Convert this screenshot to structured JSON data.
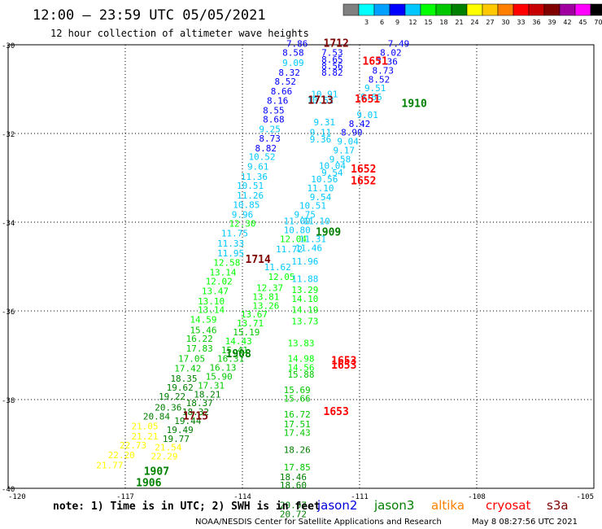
{
  "header": {
    "title": "12:00 — 23:59 UTC 05/05/2021",
    "subtitle": "12 hour collection of altimeter wave heights"
  },
  "color_scale": {
    "unit": "(ft)",
    "bins": [
      {
        "label": "",
        "color": "#808080"
      },
      {
        "label": "3",
        "color": "#00ffff"
      },
      {
        "label": "6",
        "color": "#00a0ff"
      },
      {
        "label": "9",
        "color": "#0000ff"
      },
      {
        "label": "12",
        "color": "#00c8ff"
      },
      {
        "label": "15",
        "color": "#00ff00"
      },
      {
        "label": "18",
        "color": "#00c800"
      },
      {
        "label": "21",
        "color": "#008000"
      },
      {
        "label": "24",
        "color": "#ffff00"
      },
      {
        "label": "27",
        "color": "#ffc800"
      },
      {
        "label": "30",
        "color": "#ff8000"
      },
      {
        "label": "33",
        "color": "#ff0000"
      },
      {
        "label": "36",
        "color": "#c80000"
      },
      {
        "label": "39",
        "color": "#800000"
      },
      {
        "label": "42",
        "color": "#a000a0"
      },
      {
        "label": "45",
        "color": "#ff00ff"
      },
      {
        "label": "70",
        "color": "#000000"
      }
    ]
  },
  "footer": {
    "note": "note: 1) Time is in UTC; 2) SWH is in feet",
    "credit": "NOAA/NESDIS Center for Satellite Applications and Research",
    "timestamp": "May  8 08:27:56 UTC 2021"
  },
  "legend": [
    {
      "name": "jason2",
      "color": "#0000dd"
    },
    {
      "name": "jason3",
      "color": "#008000"
    },
    {
      "name": "altika",
      "color": "#ff8000"
    },
    {
      "name": "cryosat",
      "color": "#ff0000"
    },
    {
      "name": "s3a",
      "color": "#800000"
    }
  ],
  "chart_data": {
    "type": "scatter",
    "title": "12:00 — 23:59 UTC 05/05/2021",
    "subtitle": "12 hour collection of altimeter wave heights",
    "x_ticks": [
      -120,
      -117,
      -114,
      -111,
      -108,
      -105
    ],
    "y_ticks": [
      -30,
      -32,
      -34,
      -36,
      -38,
      -40
    ],
    "xlim": [
      -120,
      -105
    ],
    "ylim": [
      -40,
      -30
    ],
    "grid": true,
    "legend_position": "bottom",
    "series": [
      {
        "name": "jason2",
        "color": "#0000dd"
      },
      {
        "name": "jason3",
        "color": "#008000"
      },
      {
        "name": "altika",
        "color": "#ff8000"
      },
      {
        "name": "cryosat",
        "color": "#ff0000"
      },
      {
        "name": "s3a",
        "color": "#800000"
      }
    ],
    "time_labels": [
      {
        "text": "1712",
        "x": -111.6,
        "y": -30.05,
        "color": "#800000"
      },
      {
        "text": "1651",
        "x": -110.6,
        "y": -30.45,
        "color": "#ff0000"
      },
      {
        "text": "1713",
        "x": -112.0,
        "y": -31.33,
        "color": "#800000"
      },
      {
        "text": "1651",
        "x": -110.8,
        "y": -31.3,
        "color": "#ff0000"
      },
      {
        "text": "1910",
        "x": -109.6,
        "y": -31.4,
        "color": "#008000"
      },
      {
        "text": "1652",
        "x": -110.9,
        "y": -32.88,
        "color": "#ff0000"
      },
      {
        "text": "1652",
        "x": -110.9,
        "y": -33.15,
        "color": "#ff0000"
      },
      {
        "text": "1909",
        "x": -111.8,
        "y": -34.3,
        "color": "#008000"
      },
      {
        "text": "1714",
        "x": -113.6,
        "y": -34.92,
        "color": "#800000"
      },
      {
        "text": "1908",
        "x": -114.1,
        "y": -37.05,
        "color": "#008000"
      },
      {
        "text": "1653",
        "x": -111.4,
        "y": -37.2,
        "color": "#ff0000"
      },
      {
        "text": "1653",
        "x": -111.4,
        "y": -37.3,
        "color": "#ff0000"
      },
      {
        "text": "1653",
        "x": -111.6,
        "y": -38.35,
        "color": "#ff0000"
      },
      {
        "text": "1715",
        "x": -115.2,
        "y": -38.45,
        "color": "#800000"
      },
      {
        "text": "1907",
        "x": -116.2,
        "y": -39.7,
        "color": "#008000"
      },
      {
        "text": "1906",
        "x": -116.4,
        "y": -39.95,
        "color": "#008000"
      }
    ],
    "points": [
      {
        "v": "7.86",
        "x": -112.6,
        "y": -30.05
      },
      {
        "v": "8.58",
        "x": -112.7,
        "y": -30.25
      },
      {
        "v": "9.09",
        "x": -112.7,
        "y": -30.48
      },
      {
        "v": "8.32",
        "x": -112.8,
        "y": -30.7
      },
      {
        "v": "8.52",
        "x": -112.9,
        "y": -30.9
      },
      {
        "v": "8.66",
        "x": -113.0,
        "y": -31.12
      },
      {
        "v": "8.16",
        "x": -113.1,
        "y": -31.33
      },
      {
        "v": "8.55",
        "x": -113.2,
        "y": -31.55
      },
      {
        "v": "8.68",
        "x": -113.2,
        "y": -31.75
      },
      {
        "v": "9.25",
        "x": -113.3,
        "y": -31.97
      },
      {
        "v": "8.73",
        "x": -113.3,
        "y": -32.18
      },
      {
        "v": "8.82",
        "x": -113.4,
        "y": -32.4
      },
      {
        "v": "10.52",
        "x": -113.5,
        "y": -32.6
      },
      {
        "v": "9.61",
        "x": -113.6,
        "y": -32.82
      },
      {
        "v": "11.36",
        "x": -113.7,
        "y": -33.05
      },
      {
        "v": "10.51",
        "x": -113.8,
        "y": -33.25
      },
      {
        "v": "11.26",
        "x": -113.8,
        "y": -33.47
      },
      {
        "v": "10.85",
        "x": -113.9,
        "y": -33.68
      },
      {
        "v": "9.96",
        "x": -114.0,
        "y": -33.9
      },
      {
        "v": "12.30",
        "x": -114.0,
        "y": -34.1
      },
      {
        "v": "11.75",
        "x": -114.2,
        "y": -34.32
      },
      {
        "v": "11.33",
        "x": -114.3,
        "y": -34.55
      },
      {
        "v": "11.95",
        "x": -114.3,
        "y": -34.77
      },
      {
        "v": "12.58",
        "x": -114.4,
        "y": -34.98
      },
      {
        "v": "13.14",
        "x": -114.5,
        "y": -35.2
      },
      {
        "v": "12.02",
        "x": -114.6,
        "y": -35.4
      },
      {
        "v": "13.47",
        "x": -114.7,
        "y": -35.62
      },
      {
        "v": "13.10",
        "x": -114.8,
        "y": -35.85
      },
      {
        "v": "13.14",
        "x": -114.8,
        "y": -36.05
      },
      {
        "v": "14.59",
        "x": -115.0,
        "y": -36.27
      },
      {
        "v": "15.46",
        "x": -115.0,
        "y": -36.5
      },
      {
        "v": "16.22",
        "x": -115.1,
        "y": -36.7
      },
      {
        "v": "17.83",
        "x": -115.1,
        "y": -36.92
      },
      {
        "v": "17.05",
        "x": -115.3,
        "y": -37.15
      },
      {
        "v": "17.42",
        "x": -115.4,
        "y": -37.37
      },
      {
        "v": "18.35",
        "x": -115.5,
        "y": -37.6
      },
      {
        "v": "19.62",
        "x": -115.6,
        "y": -37.8
      },
      {
        "v": "19.22",
        "x": -115.8,
        "y": -38.0
      },
      {
        "v": "20.36",
        "x": -115.9,
        "y": -38.25
      },
      {
        "v": "20.84",
        "x": -116.2,
        "y": -38.45
      },
      {
        "v": "21.05",
        "x": -116.5,
        "y": -38.67
      },
      {
        "v": "21.21",
        "x": -116.5,
        "y": -38.9
      },
      {
        "v": "22.73",
        "x": -116.8,
        "y": -39.1
      },
      {
        "v": "22.20",
        "x": -117.1,
        "y": -39.32
      },
      {
        "v": "21.77",
        "x": -117.4,
        "y": -39.55
      },
      {
        "v": "7.53",
        "x": -111.7,
        "y": -30.25
      },
      {
        "v": "8.65",
        "x": -111.7,
        "y": -30.4
      },
      {
        "v": "8.56",
        "x": -111.7,
        "y": -30.55
      },
      {
        "v": "8.82",
        "x": -111.7,
        "y": -30.7
      },
      {
        "v": "10.91",
        "x": -111.9,
        "y": -31.18
      },
      {
        "v": "10.52",
        "x": -112.0,
        "y": -31.32
      },
      {
        "v": "9.31",
        "x": -111.9,
        "y": -31.82
      },
      {
        "v": "9.11",
        "x": -112.0,
        "y": -32.05
      },
      {
        "v": "9.36",
        "x": -112.0,
        "y": -32.2
      },
      {
        "v": "10.04",
        "x": -111.7,
        "y": -32.8
      },
      {
        "v": "10.56",
        "x": -111.9,
        "y": -33.1
      },
      {
        "v": "11.10",
        "x": -112.0,
        "y": -33.3
      },
      {
        "v": "9.54",
        "x": -112.0,
        "y": -33.5
      },
      {
        "v": "10.51",
        "x": -112.2,
        "y": -33.7
      },
      {
        "v": "9.75",
        "x": -112.4,
        "y": -33.9
      },
      {
        "v": "11.00",
        "x": -112.6,
        "y": -34.05
      },
      {
        "v": "10.80",
        "x": -112.6,
        "y": -34.25
      },
      {
        "v": "12.04",
        "x": -112.7,
        "y": -34.45
      },
      {
        "v": "11.72",
        "x": -112.8,
        "y": -34.68
      },
      {
        "v": "11.62",
        "x": -113.1,
        "y": -35.08
      },
      {
        "v": "12.05",
        "x": -113.0,
        "y": -35.3
      },
      {
        "v": "12.37",
        "x": -113.3,
        "y": -35.55
      },
      {
        "v": "13.81",
        "x": -113.4,
        "y": -35.75
      },
      {
        "v": "13.26",
        "x": -113.4,
        "y": -35.95
      },
      {
        "v": "13.67",
        "x": -113.7,
        "y": -36.15
      },
      {
        "v": "13.71",
        "x": -113.8,
        "y": -36.35
      },
      {
        "v": "15.19",
        "x": -113.9,
        "y": -36.55
      },
      {
        "v": "14.43",
        "x": -114.1,
        "y": -36.75
      },
      {
        "v": "15.41",
        "x": -114.2,
        "y": -36.95
      },
      {
        "v": "16.31",
        "x": -114.3,
        "y": -37.15
      },
      {
        "v": "16.13",
        "x": -114.5,
        "y": -37.35
      },
      {
        "v": "15.90",
        "x": -114.6,
        "y": -37.55
      },
      {
        "v": "17.31",
        "x": -114.8,
        "y": -37.75
      },
      {
        "v": "18.21",
        "x": -114.9,
        "y": -37.95
      },
      {
        "v": "18.37",
        "x": -115.1,
        "y": -38.15
      },
      {
        "v": "18.32",
        "x": -115.2,
        "y": -38.35
      },
      {
        "v": "19.44",
        "x": -115.4,
        "y": -38.55
      },
      {
        "v": "19.49",
        "x": -115.6,
        "y": -38.75
      },
      {
        "v": "19.77",
        "x": -115.7,
        "y": -38.95
      },
      {
        "v": "21.54",
        "x": -115.9,
        "y": -39.15
      },
      {
        "v": "22.29",
        "x": -116.0,
        "y": -39.35
      },
      {
        "v": "7.49",
        "x": -110.0,
        "y": -30.05
      },
      {
        "v": "8.02",
        "x": -110.2,
        "y": -30.25
      },
      {
        "v": "7.36",
        "x": -110.3,
        "y": -30.45
      },
      {
        "v": "8.73",
        "x": -110.4,
        "y": -30.65
      },
      {
        "v": "8.52",
        "x": -110.5,
        "y": -30.85
      },
      {
        "v": "9.51",
        "x": -110.6,
        "y": -31.05
      },
      {
        "v": "9.66",
        "x": -110.7,
        "y": -31.25
      },
      {
        "v": "9.01",
        "x": -110.8,
        "y": -31.65
      },
      {
        "v": "8.42",
        "x": -111.0,
        "y": -31.85
      },
      {
        "v": "8.90",
        "x": -111.2,
        "y": -32.05
      },
      {
        "v": "9.04",
        "x": -111.3,
        "y": -32.25
      },
      {
        "v": "9.17",
        "x": -111.4,
        "y": -32.45
      },
      {
        "v": "9.58",
        "x": -111.5,
        "y": -32.65
      },
      {
        "v": "9.54",
        "x": -111.7,
        "y": -32.95
      },
      {
        "v": "11.10",
        "x": -112.1,
        "y": -34.05
      },
      {
        "v": "11.31",
        "x": -112.2,
        "y": -34.45
      },
      {
        "v": "11.46",
        "x": -112.3,
        "y": -34.65
      },
      {
        "v": "11.96",
        "x": -112.4,
        "y": -34.95
      },
      {
        "v": "11.88",
        "x": -112.4,
        "y": -35.35
      },
      {
        "v": "13.29",
        "x": -112.4,
        "y": -35.6
      },
      {
        "v": "14.10",
        "x": -112.4,
        "y": -35.8
      },
      {
        "v": "14.19",
        "x": -112.4,
        "y": -36.05
      },
      {
        "v": "13.73",
        "x": -112.4,
        "y": -36.3
      },
      {
        "v": "13.83",
        "x": -112.5,
        "y": -36.8
      },
      {
        "v": "14.98",
        "x": -112.5,
        "y": -37.15
      },
      {
        "v": "14.56",
        "x": -112.5,
        "y": -37.35
      },
      {
        "v": "15.88",
        "x": -112.5,
        "y": -37.5
      },
      {
        "v": "15.69",
        "x": -112.6,
        "y": -37.85
      },
      {
        "v": "15.66",
        "x": -112.6,
        "y": -38.05
      },
      {
        "v": "16.72",
        "x": -112.6,
        "y": -38.4
      },
      {
        "v": "17.51",
        "x": -112.6,
        "y": -38.62
      },
      {
        "v": "17.43",
        "x": -112.6,
        "y": -38.82
      },
      {
        "v": "18.26",
        "x": -112.6,
        "y": -39.2
      },
      {
        "v": "17.85",
        "x": -112.6,
        "y": -39.6
      },
      {
        "v": "18.46",
        "x": -112.7,
        "y": -39.82
      },
      {
        "v": "18.60",
        "x": -112.7,
        "y": -40.0
      },
      {
        "v": "20.97",
        "x": -112.7,
        "y": -40.45
      },
      {
        "v": "20.72",
        "x": -112.7,
        "y": -40.65
      }
    ]
  }
}
